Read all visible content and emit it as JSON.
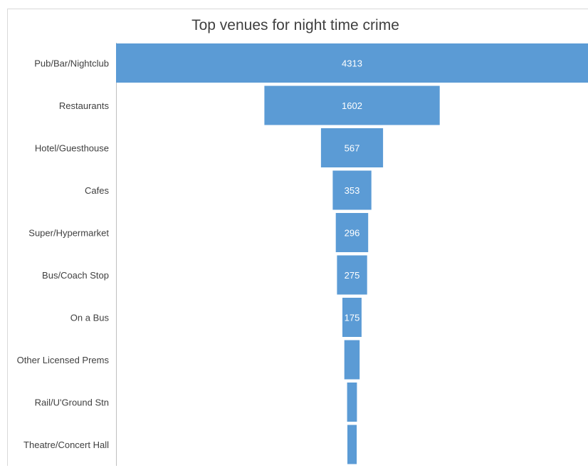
{
  "chart_data": {
    "type": "bar",
    "subtype": "funnel",
    "title": "Top venues for night time crime",
    "categories": [
      "Pub/Bar/Nightclub",
      "Restaurants",
      "Hotel/Guesthouse",
      "Cafes",
      "Super/Hypermarket",
      "Bus/Coach Stop",
      "On a Bus",
      "Other Licensed Prems",
      "Rail/U'Ground Stn",
      "Theatre/Concert Hall"
    ],
    "values": [
      4313,
      1602,
      567,
      353,
      296,
      275,
      175,
      140,
      90,
      85
    ],
    "data_labels": [
      "4313",
      "1602",
      "567",
      "353",
      "296",
      "275",
      "175",
      "",
      "",
      ""
    ],
    "bar_color": "#5b9bd5",
    "label_color": "#ffffff",
    "category_label_color": "#404040",
    "grid": false,
    "legend": "none"
  }
}
